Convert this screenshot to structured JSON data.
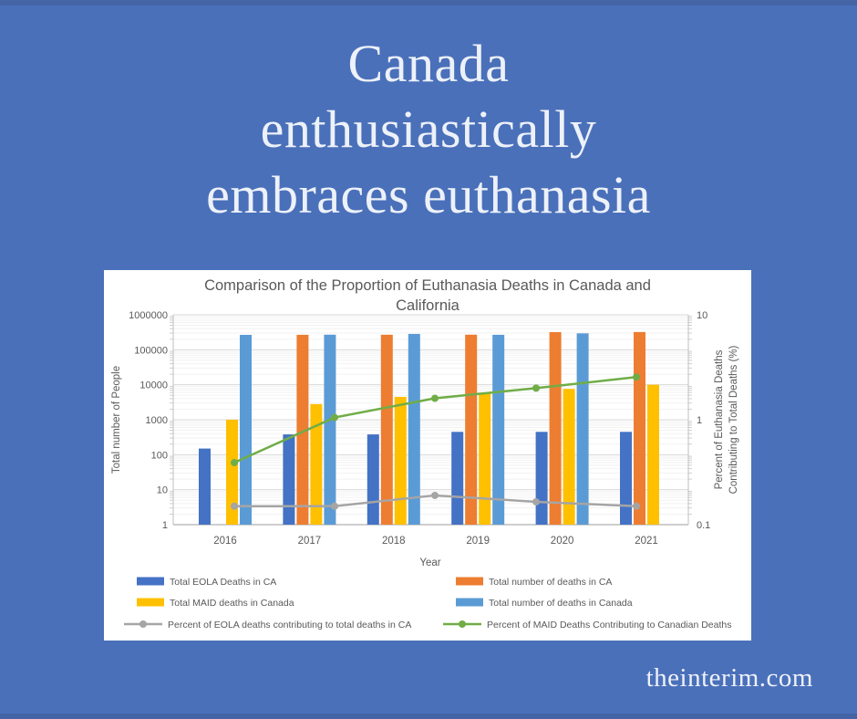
{
  "poster": {
    "title_lines": [
      "Canada",
      "enthusiastically",
      "embraces euthanasia"
    ],
    "watermark": "theinterim.com",
    "colors": {
      "background": "#4a70ba",
      "edge_strip": "#4464a5",
      "title_text": "#edf1f8",
      "panel": "#ffffff",
      "chart_text": "#595959"
    }
  },
  "chart_data": {
    "type": "combo-bar-line",
    "title_lines": [
      "Comparison of the Proportion of Euthanasia Deaths in Canada and",
      "California"
    ],
    "xlabel": "Year",
    "categories": [
      "2016",
      "2017",
      "2018",
      "2019",
      "2020",
      "2021"
    ],
    "left_axis": {
      "label": "Total number of People",
      "scale": "log",
      "min": 1,
      "max": 1000000,
      "ticks": [
        "1000000",
        "100000",
        "10000",
        "1000",
        "100",
        "10",
        "1"
      ]
    },
    "right_axis": {
      "label_lines": [
        "Percent of Euthanasia Deaths",
        "Contributing to Total Deaths (%)"
      ],
      "scale": "log",
      "min": 0.1,
      "max": 10,
      "ticks": [
        "10",
        "1",
        "0.1"
      ]
    },
    "bar_series": [
      {
        "name": "Total EOLA Deaths in CA",
        "color": "#4472C4",
        "axis": "left",
        "values": [
          150,
          380,
          380,
          450,
          450,
          450
        ]
      },
      {
        "name": "Total number of deaths in CA",
        "color": "#ED7D31",
        "axis": "left",
        "values": [
          null,
          268000,
          269000,
          270000,
          320000,
          322000
        ]
      },
      {
        "name": "Total MAID deaths in Canada",
        "color": "#FFC000",
        "axis": "left",
        "values": [
          1000,
          2800,
          4500,
          5700,
          7600,
          10000
        ]
      },
      {
        "name": "Total number of deaths in Canada",
        "color": "#5B9BD5",
        "axis": "left",
        "values": [
          267000,
          270000,
          284000,
          268000,
          295000,
          null
        ]
      }
    ],
    "line_series": [
      {
        "name": "Percent of EOLA deaths contributing to total deaths in CA",
        "color": "#A5A5A5",
        "axis": "right",
        "point_years": [
          "2016",
          "2017",
          "2018",
          "2019",
          "2020"
        ],
        "values": [
          0.15,
          0.15,
          0.19,
          0.165,
          0.15
        ]
      },
      {
        "name": "Percent of MAID Deaths Contributing to Canadian Deaths",
        "color": "#70AD47",
        "axis": "right",
        "point_years": [
          "2016",
          "2017",
          "2018",
          "2019",
          "2020"
        ],
        "values": [
          0.39,
          1.05,
          1.6,
          2.0,
          2.55
        ]
      }
    ],
    "legend_position": "bottom-two-columns",
    "grid": {
      "major_color": "#d9d9d9",
      "minor_color": "#f2f2f2",
      "axis_line_color": "#bfbfbf"
    }
  }
}
